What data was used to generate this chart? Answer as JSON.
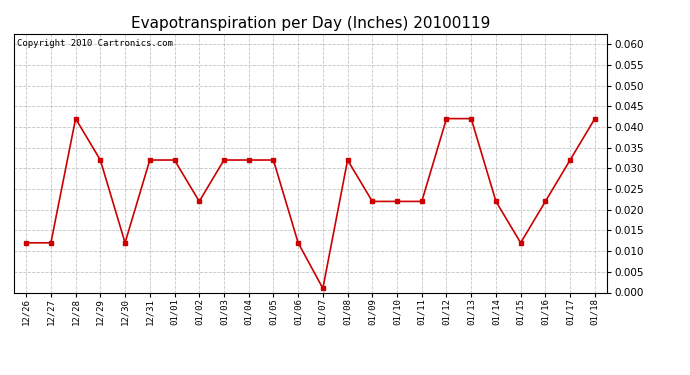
{
  "title": "Evapotranspiration per Day (Inches) 20100119",
  "copyright_text": "Copyright 2010 Cartronics.com",
  "x_labels": [
    "12/26",
    "12/27",
    "12/28",
    "12/29",
    "12/30",
    "12/31",
    "01/01",
    "01/02",
    "01/03",
    "01/04",
    "01/05",
    "01/06",
    "01/07",
    "01/08",
    "01/09",
    "01/10",
    "01/11",
    "01/12",
    "01/13",
    "01/14",
    "01/15",
    "01/16",
    "01/17",
    "01/18"
  ],
  "y_values": [
    0.012,
    0.012,
    0.042,
    0.032,
    0.012,
    0.032,
    0.032,
    0.022,
    0.032,
    0.032,
    0.032,
    0.012,
    0.001,
    0.032,
    0.022,
    0.022,
    0.022,
    0.042,
    0.042,
    0.022,
    0.012,
    0.022,
    0.032,
    0.042
  ],
  "line_color": "#cc0000",
  "marker": "s",
  "marker_size": 3,
  "ylim": [
    0.0,
    0.0625
  ],
  "yticks": [
    0.0,
    0.005,
    0.01,
    0.015,
    0.02,
    0.025,
    0.03,
    0.035,
    0.04,
    0.045,
    0.05,
    0.055,
    0.06
  ],
  "background_color": "#ffffff",
  "grid_color": "#aaaaaa",
  "title_fontsize": 11,
  "copyright_fontsize": 6.5
}
